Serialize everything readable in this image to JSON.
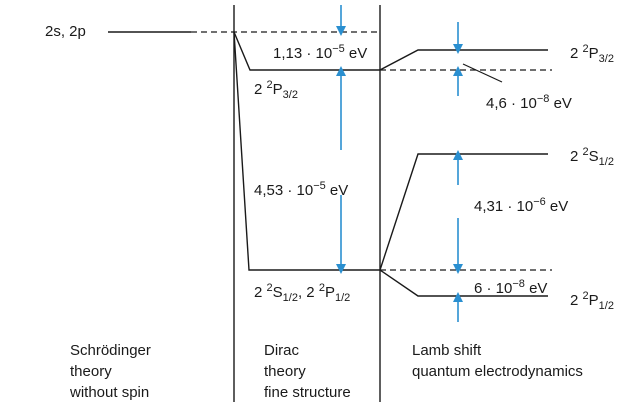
{
  "levels": {
    "schrodinger": "2s, 2p",
    "dirac_upper": [
      "2",
      "2",
      "P",
      "3/2"
    ],
    "dirac_lower": [
      "2",
      "2",
      "S",
      "1/2",
      "2",
      "2",
      "P",
      "1/2"
    ],
    "lamb_p32": [
      "2",
      "2",
      "P",
      "3/2"
    ],
    "lamb_s12": [
      "2",
      "2",
      "S",
      "1/2"
    ],
    "lamb_p12": [
      "2",
      "2",
      "P",
      "1/2"
    ]
  },
  "energies": {
    "upper_gap": [
      "1,13 · 10",
      "−5",
      " eV"
    ],
    "fine_structure": [
      "4,53 · 10",
      "−5",
      " eV"
    ],
    "p32_lamb": [
      "4,6 · 10",
      "−8",
      " eV"
    ],
    "s_shift": [
      "4,31 · 10",
      "−6",
      " eV"
    ],
    "p12_lamb": [
      "6 · 10",
      "−8",
      " eV"
    ]
  },
  "columns": {
    "schrodinger": "Schrödinger\ntheory\nwithout spin",
    "dirac": "Dirac\ntheory\nfine structure",
    "lamb": "Lamb shift\nquantum electrodynamics"
  },
  "colors": {
    "arrow": "#2a8fd0",
    "line": "#1a1a1a"
  }
}
